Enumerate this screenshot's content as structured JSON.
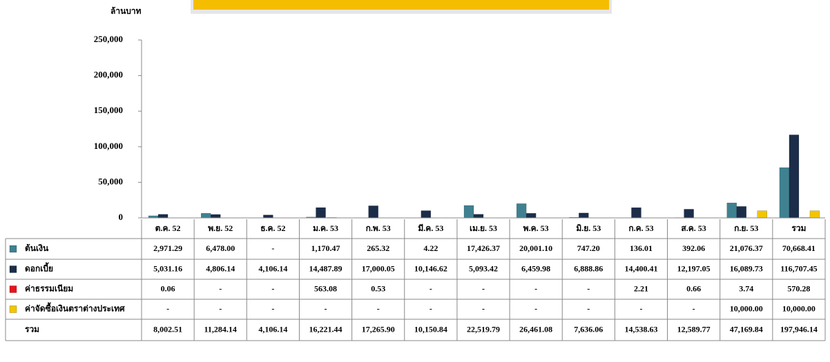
{
  "chart_data": {
    "type": "bar",
    "y_axis_label": "ล้านบาท",
    "categories": [
      "ต.ค. 52",
      "พ.ย. 52",
      "ธ.ค. 52",
      "ม.ค. 53",
      "ก.พ. 53",
      "มี.ค. 53",
      "เม.ย. 53",
      "พ.ค. 53",
      "มิ.ย. 53",
      "ก.ค. 53",
      "ส.ค. 53",
      "ก.ย. 53",
      "รวม"
    ],
    "series": [
      {
        "name": "ต้นเงิน",
        "color": "#3f8190",
        "values": [
          2971.29,
          6478.0,
          0,
          1170.47,
          265.32,
          4.22,
          17426.37,
          20001.1,
          747.2,
          136.01,
          392.06,
          21076.37,
          70668.41
        ],
        "value_labels": [
          "2,971.29",
          "6,478.00",
          "-",
          "1,170.47",
          "265.32",
          "4.22",
          "17,426.37",
          "20,001.10",
          "747.20",
          "136.01",
          "392.06",
          "21,076.37",
          "70,668.41"
        ]
      },
      {
        "name": "ดอกเบี้ย",
        "color": "#1c2d4a",
        "values": [
          5031.16,
          4806.14,
          4106.14,
          14487.89,
          17000.05,
          10146.62,
          5093.42,
          6459.98,
          6888.86,
          14400.41,
          12197.05,
          16089.73,
          116707.45
        ],
        "value_labels": [
          "5,031.16",
          "4,806.14",
          "4,106.14",
          "14,487.89",
          "17,000.05",
          "10,146.62",
          "5,093.42",
          "6,459.98",
          "6,888.86",
          "14,400.41",
          "12,197.05",
          "16,089.73",
          "116,707.45"
        ]
      },
      {
        "name": "ค่าธรรมเนียม",
        "color": "#e8141b",
        "values": [
          0.06,
          0,
          0,
          563.08,
          0.53,
          0,
          0,
          0,
          0,
          2.21,
          0.66,
          3.74,
          570.28
        ],
        "value_labels": [
          "0.06",
          "-",
          "-",
          "563.08",
          "0.53",
          "-",
          "-",
          "-",
          "-",
          "2.21",
          "0.66",
          "3.74",
          "570.28"
        ]
      },
      {
        "name": "ค่าจัดซื้อเงินตราต่างประเทศ",
        "color": "#f2c500",
        "values": [
          0,
          0,
          0,
          0,
          0,
          0,
          0,
          0,
          0,
          0,
          0,
          10000.0,
          10000.0
        ],
        "value_labels": [
          "-",
          "-",
          "-",
          "-",
          "-",
          "-",
          "-",
          "-",
          "-",
          "-",
          "-",
          "10,000.00",
          "10,000.00"
        ]
      }
    ],
    "table_total": {
      "name": "รวม",
      "values": [
        8002.51,
        11284.14,
        4106.14,
        16221.44,
        17265.9,
        10150.84,
        22519.79,
        26461.08,
        7636.06,
        14538.63,
        12589.77,
        47169.84,
        197946.14
      ],
      "value_labels": [
        "8,002.51",
        "11,284.14",
        "4,106.14",
        "16,221.44",
        "17,265.90",
        "10,150.84",
        "22,519.79",
        "26,461.08",
        "7,636.06",
        "14,538.63",
        "12,589.77",
        "47,169.84",
        "197,946.14"
      ]
    },
    "ylim": [
      0,
      250000
    ],
    "yticks": [
      0,
      {
        "value": 50000,
        "label": "50,000"
      },
      {
        "value": 100000,
        "label": "100,000"
      },
      {
        "value": 150000,
        "label": "150,000"
      },
      {
        "value": 200000,
        "label": "200,000"
      },
      {
        "value": 250000,
        "label": "250,000"
      }
    ],
    "grid": false
  }
}
